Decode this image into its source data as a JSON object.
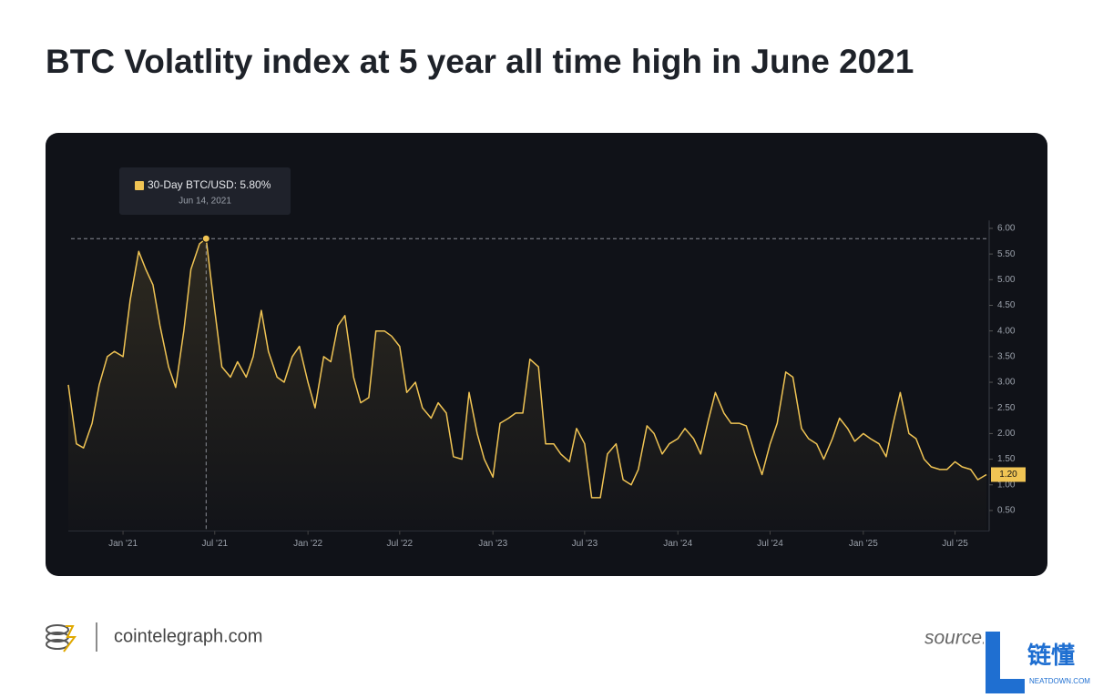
{
  "chart_data": {
    "type": "line",
    "title": "BTC Volatlity index at 5 year all time high in June 2021",
    "x": [
      "2020-09-15",
      "2020-10-01",
      "2020-10-15",
      "2020-11-01",
      "2020-11-15",
      "2020-12-01",
      "2020-12-15",
      "2021-01-01",
      "2021-01-15",
      "2021-02-01",
      "2021-02-15",
      "2021-03-01",
      "2021-03-15",
      "2021-04-01",
      "2021-04-15",
      "2021-05-01",
      "2021-05-15",
      "2021-06-01",
      "2021-06-14",
      "2021-07-01",
      "2021-07-15",
      "2021-08-01",
      "2021-08-15",
      "2021-09-01",
      "2021-09-15",
      "2021-10-01",
      "2021-10-15",
      "2021-11-01",
      "2021-11-15",
      "2021-12-01",
      "2021-12-15",
      "2022-01-01",
      "2022-01-15",
      "2022-02-01",
      "2022-02-15",
      "2022-03-01",
      "2022-03-15",
      "2022-04-01",
      "2022-04-15",
      "2022-05-01",
      "2022-05-15",
      "2022-06-01",
      "2022-06-15",
      "2022-07-01",
      "2022-07-15",
      "2022-08-01",
      "2022-08-15",
      "2022-09-01",
      "2022-09-15",
      "2022-10-01",
      "2022-10-15",
      "2022-11-01",
      "2022-11-15",
      "2022-12-01",
      "2022-12-15",
      "2023-01-01",
      "2023-01-15",
      "2023-02-01",
      "2023-02-15",
      "2023-03-01",
      "2023-03-15",
      "2023-04-01",
      "2023-04-15",
      "2023-05-01",
      "2023-05-15",
      "2023-06-01",
      "2023-06-15",
      "2023-07-01",
      "2023-07-15",
      "2023-08-01",
      "2023-08-15",
      "2023-09-01",
      "2023-09-15",
      "2023-10-01",
      "2023-10-15",
      "2023-11-01",
      "2023-11-15",
      "2023-12-01",
      "2023-12-15",
      "2024-01-01",
      "2024-01-15",
      "2024-02-01",
      "2024-02-15",
      "2024-03-01",
      "2024-03-15",
      "2024-04-01",
      "2024-04-15",
      "2024-05-01",
      "2024-05-15",
      "2024-06-01",
      "2024-06-15",
      "2024-07-01",
      "2024-07-15",
      "2024-08-01",
      "2024-08-15",
      "2024-09-01",
      "2024-09-15",
      "2024-10-01",
      "2024-10-15",
      "2024-11-01",
      "2024-11-15",
      "2024-12-01",
      "2024-12-15",
      "2025-01-01",
      "2025-01-15",
      "2025-02-01",
      "2025-02-15",
      "2025-03-01",
      "2025-03-15",
      "2025-04-01",
      "2025-04-15",
      "2025-05-01",
      "2025-05-15",
      "2025-06-01",
      "2025-06-15",
      "2025-07-01",
      "2025-07-15",
      "2025-08-01",
      "2025-08-15",
      "2025-09-01"
    ],
    "series": [
      {
        "color": "#f0c454",
        "values": [
          2.95,
          1.8,
          1.72,
          2.2,
          2.95,
          3.5,
          3.6,
          3.5,
          4.6,
          5.55,
          5.2,
          4.9,
          4.1,
          3.3,
          2.9,
          4.0,
          5.2,
          5.7,
          5.8,
          4.4,
          3.3,
          3.1,
          3.4,
          3.1,
          3.5,
          4.4,
          3.6,
          3.1,
          3.0,
          3.5,
          3.7,
          3.0,
          2.5,
          3.5,
          3.4,
          4.1,
          4.3,
          3.1,
          2.6,
          2.7,
          4.0,
          4.0,
          3.9,
          3.7,
          2.8,
          3.0,
          2.5,
          2.3,
          2.6,
          2.4,
          1.55,
          1.5,
          2.8,
          2.0,
          1.5,
          1.15,
          2.2,
          2.3,
          2.4,
          2.4,
          3.45,
          3.3,
          1.8,
          1.8,
          1.6,
          1.45,
          2.1,
          1.8,
          0.75,
          0.75,
          1.6,
          1.8,
          1.1,
          1.0,
          1.3,
          2.15,
          2.0,
          1.6,
          1.8,
          1.9,
          2.1,
          1.9,
          1.6,
          2.25,
          2.8,
          2.4,
          2.2,
          2.2,
          2.15,
          1.6,
          1.2,
          1.8,
          2.2,
          3.2,
          3.1,
          2.1,
          1.9,
          1.8,
          1.5,
          1.9,
          2.3,
          2.1,
          1.85,
          2.0,
          1.9,
          1.8,
          1.55,
          2.2,
          2.8,
          2.0,
          1.9,
          1.5,
          1.35,
          1.3,
          1.3,
          1.45,
          1.35,
          1.3,
          1.1,
          1.2
        ]
      }
    ],
    "xlim": [
      "2020-09-15",
      "2025-09-01"
    ],
    "xticks": [
      {
        "value": "2021-01-01",
        "label": "Jan '21"
      },
      {
        "value": "2021-07-01",
        "label": "Jul '21"
      },
      {
        "value": "2022-01-01",
        "label": "Jan '22"
      },
      {
        "value": "2022-07-01",
        "label": "Jul '22"
      },
      {
        "value": "2023-01-01",
        "label": "Jan '23"
      },
      {
        "value": "2023-07-01",
        "label": "Jul '23"
      },
      {
        "value": "2024-01-01",
        "label": "Jan '24"
      },
      {
        "value": "2024-07-01",
        "label": "Jul '24"
      },
      {
        "value": "2025-01-01",
        "label": "Jan '25"
      },
      {
        "value": "2025-07-01",
        "label": "Jul '25"
      }
    ],
    "ylim": [
      0.1,
      6.1
    ],
    "yticks": [
      {
        "value": 0.5,
        "label": "0.50"
      },
      {
        "value": 1,
        "label": "1.00"
      },
      {
        "value": 1.5,
        "label": "1.50"
      },
      {
        "value": 2,
        "label": "2.00"
      },
      {
        "value": 2.5,
        "label": "2.50"
      },
      {
        "value": 3,
        "label": "3.00"
      },
      {
        "value": 3.5,
        "label": "3.50"
      },
      {
        "value": 4,
        "label": "4.00"
      },
      {
        "value": 4.5,
        "label": "4.50"
      },
      {
        "value": 5,
        "label": "5.00"
      },
      {
        "value": 5.5,
        "label": "5.50"
      },
      {
        "value": 6,
        "label": "6.00"
      }
    ],
    "current_value": {
      "value": 1.2,
      "label": "1.20",
      "color": "#f0c454"
    },
    "tooltip": {
      "x": "2021-06-14",
      "value": 5.8,
      "text": "30-Day BTC/USD: 5.80%",
      "date": "Jun 14, 2021"
    }
  },
  "footer": {
    "site": "cointelegraph.com",
    "source": "source: Bitbo",
    "watermark": "链懂",
    "watermark_sub": "NEATDOWN.COM"
  }
}
